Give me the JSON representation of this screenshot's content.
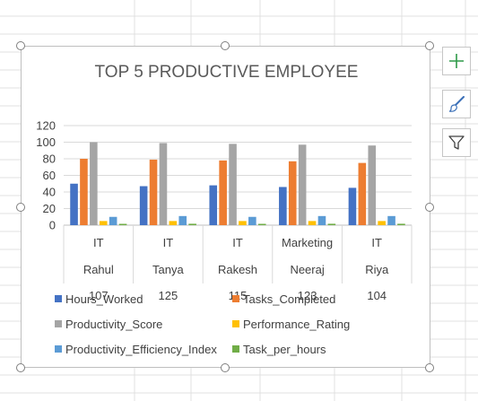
{
  "chart_data": {
    "type": "bar",
    "title": "TOP 5 PRODUCTIVE EMPLOYEE",
    "categories": [
      {
        "department": "IT",
        "name": "Rahul",
        "id": "107"
      },
      {
        "department": "IT",
        "name": "Tanya",
        "id": "125"
      },
      {
        "department": "IT",
        "name": "Rakesh",
        "id": "115"
      },
      {
        "department": "Marketing",
        "name": "Neeraj",
        "id": "123"
      },
      {
        "department": "IT",
        "name": "Riya",
        "id": "104"
      }
    ],
    "series": [
      {
        "name": "Hours_Worked",
        "color": "#4472c4",
        "values": [
          50,
          47,
          48,
          46,
          45
        ]
      },
      {
        "name": "Tasks_Completed",
        "color": "#ed7d31",
        "values": [
          80,
          79,
          78,
          77,
          75
        ]
      },
      {
        "name": "Productivity_Score",
        "color": "#a5a5a5",
        "values": [
          100,
          99,
          98,
          97,
          96
        ]
      },
      {
        "name": "Performance_Rating",
        "color": "#ffc000",
        "values": [
          5,
          5,
          5,
          5,
          5
        ]
      },
      {
        "name": "Productivity_Efficiency_Index",
        "color": "#5b9bd5",
        "values": [
          10,
          11,
          10,
          11,
          11
        ]
      },
      {
        "name": "Task_per_hours",
        "color": "#70ad47",
        "values": [
          1.6,
          1.7,
          1.6,
          1.7,
          1.7
        ]
      }
    ],
    "ylim": [
      0,
      120
    ],
    "yticks": [
      "0",
      "20",
      "40",
      "60",
      "80",
      "100",
      "120"
    ],
    "grid": true,
    "legend_position": "bottom"
  },
  "toolbar": {
    "chart_elements_icon": "plus-icon",
    "chart_styles_icon": "paintbrush-icon",
    "chart_filters_icon": "funnel-icon"
  }
}
